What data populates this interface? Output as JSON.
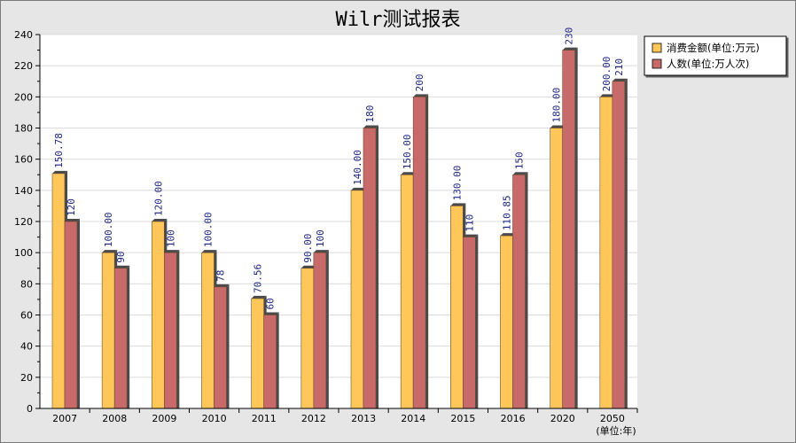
{
  "chart_data": {
    "type": "bar",
    "title": "Wilr测试报表",
    "categories": [
      "2007",
      "2008",
      "2009",
      "2010",
      "2011",
      "2012",
      "2013",
      "2014",
      "2015",
      "2016",
      "2020",
      "2050"
    ],
    "series": [
      {
        "name": "消费金额(单位:万元)",
        "color": "#ffc75a",
        "values": [
          150.78,
          100.0,
          120.0,
          100.0,
          70.56,
          90.0,
          140.0,
          150.0,
          130.0,
          110.85,
          180.0,
          200.0
        ],
        "labels": [
          "150.78",
          "100.00",
          "120.00",
          "100.00",
          "70.56",
          "90.00",
          "140.00",
          "150.00",
          "130.00",
          "110.85",
          "180.00",
          "200.00"
        ]
      },
      {
        "name": "人数(单位:万人次)",
        "color": "#c86a6a",
        "values": [
          120,
          90,
          100,
          78,
          60,
          100,
          180,
          200,
          110,
          150,
          230,
          210
        ],
        "labels": [
          "120",
          "90",
          "100",
          "78",
          "60",
          "100",
          "180",
          "200",
          "110",
          "150",
          "230",
          "210"
        ]
      }
    ],
    "ylim": [
      0,
      240
    ],
    "yticks": [
      0,
      20,
      40,
      60,
      80,
      100,
      120,
      140,
      160,
      180,
      200,
      220,
      240
    ],
    "xlabel": "(单位:年)",
    "ylabel": "",
    "legend": "top-right",
    "grid": true
  }
}
